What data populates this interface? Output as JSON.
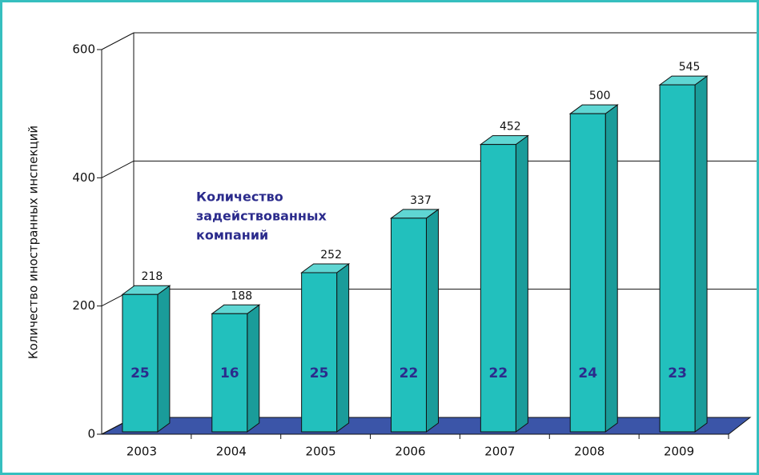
{
  "chart_data": {
    "type": "bar3d",
    "y_label": "Количество иностранных инспекций",
    "categories": [
      "2003",
      "2004",
      "2005",
      "2006",
      "2007",
      "2008",
      "2009"
    ],
    "values": [
      218,
      188,
      252,
      337,
      452,
      500,
      545
    ],
    "color": "#22c0bd",
    "ylim": [
      0,
      600
    ],
    "yticks": [
      0,
      200,
      400,
      600
    ],
    "grid": true,
    "annotation": [
      "Количество",
      "задействованных",
      "компаний"
    ],
    "inner_labels": [
      "25",
      "16",
      "25",
      "22",
      "22",
      "24",
      "23"
    ]
  }
}
